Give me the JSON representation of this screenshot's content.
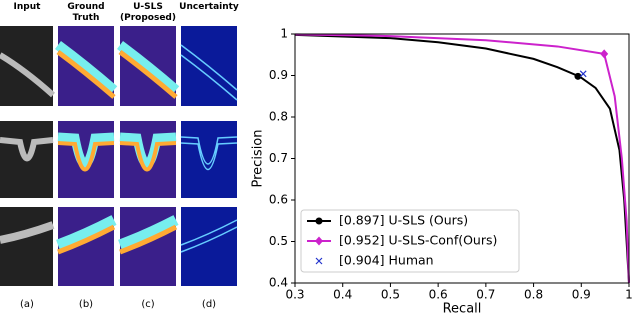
{
  "panels": {
    "headers": [
      "Input",
      "Ground Truth",
      "U-SLS (Proposed)",
      "Uncertainty"
    ],
    "labels": [
      "(a)",
      "(b)",
      "(c)",
      "(d)"
    ]
  },
  "chart_data": {
    "type": "line",
    "xlabel": "Recall",
    "ylabel": "Precision",
    "xlim": [
      0.3,
      1.0
    ],
    "ylim": [
      0.4,
      1.0
    ],
    "xticks": [
      0.3,
      0.4,
      0.5,
      0.6,
      0.7,
      0.8,
      0.9,
      1.0
    ],
    "yticks": [
      0.4,
      0.5,
      0.6,
      0.7,
      0.8,
      0.9,
      1.0
    ],
    "grid": false,
    "legend": "lower left",
    "series": [
      {
        "name": "[0.897] U-SLS (Ours)",
        "color": "#000000",
        "marker": "circle",
        "x": [
          0.3,
          0.5,
          0.6,
          0.7,
          0.8,
          0.85,
          0.897,
          0.93,
          0.96,
          0.98,
          0.99,
          0.995,
          1.0
        ],
        "values": [
          0.998,
          0.99,
          0.98,
          0.965,
          0.94,
          0.92,
          0.897,
          0.87,
          0.82,
          0.72,
          0.6,
          0.5,
          0.4
        ],
        "marker_x": 0.893,
        "marker_y": 0.898
      },
      {
        "name": "[0.952] U-SLS-Conf(Ours)",
        "color": "#cc22cc",
        "marker": "diamond",
        "x": [
          0.3,
          0.5,
          0.7,
          0.85,
          0.948,
          0.97,
          0.985,
          0.995,
          1.0
        ],
        "values": [
          0.999,
          0.995,
          0.985,
          0.97,
          0.952,
          0.85,
          0.7,
          0.55,
          0.4
        ],
        "marker_x": 0.948,
        "marker_y": 0.952
      },
      {
        "name": "[0.904] Human",
        "color": "#2233cc",
        "marker": "x",
        "x": [],
        "values": [],
        "marker_x": 0.904,
        "marker_y": 0.904
      }
    ]
  }
}
